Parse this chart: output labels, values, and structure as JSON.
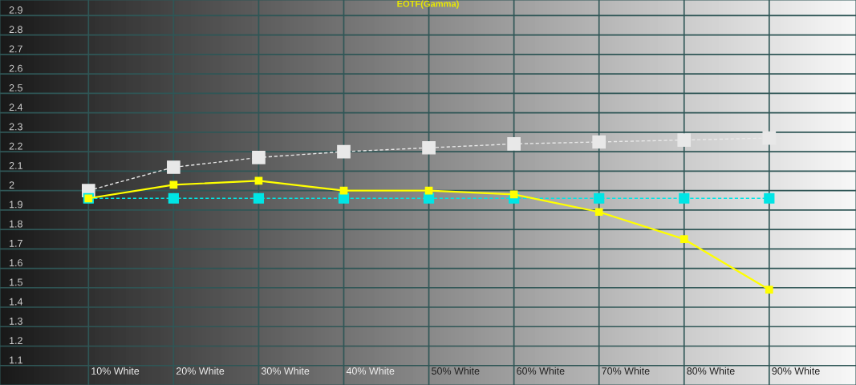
{
  "chart_data": {
    "type": "line",
    "title": "EOTF(Gamma)",
    "categories": [
      "10% White",
      "20% White",
      "30% White",
      "40% White",
      "50% White",
      "60% White",
      "70% White",
      "80% White",
      "90% White"
    ],
    "series": [
      {
        "color": "#e8e8e8",
        "line_style": "dashed",
        "values": [
          2.0,
          2.12,
          2.17,
          2.2,
          2.22,
          2.24,
          2.25,
          2.26,
          2.27
        ]
      },
      {
        "color": "#00e5e5",
        "line_style": "dashed",
        "values": [
          1.96,
          1.96,
          1.96,
          1.96,
          1.96,
          1.96,
          1.96,
          1.96,
          1.96
        ]
      },
      {
        "color": "#ffff00",
        "line_style": "solid",
        "values": [
          1.96,
          2.03,
          2.05,
          2.0,
          2.0,
          1.98,
          1.89,
          1.75,
          1.49
        ]
      }
    ],
    "ylim": [
      1.0,
      2.98
    ],
    "yticks": [
      1.1,
      1.2,
      1.3,
      1.4,
      1.5,
      1.6,
      1.7,
      1.8,
      1.9,
      {
        "value": 2.0,
        "label": "2"
      },
      2.1,
      2.2,
      2.3,
      2.4,
      2.5,
      2.6,
      2.7,
      2.8,
      2.9
    ],
    "grid": true,
    "marker": "square"
  }
}
